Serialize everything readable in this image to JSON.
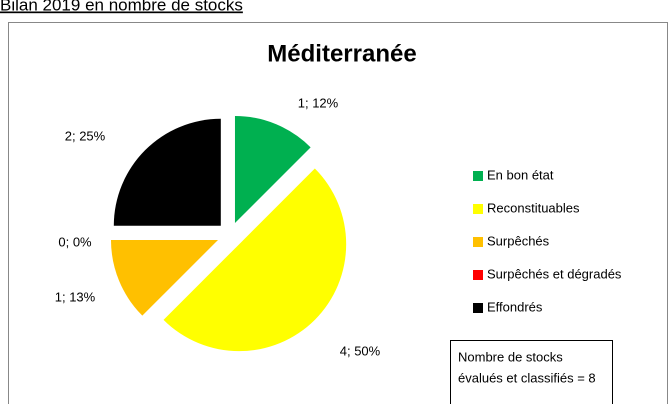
{
  "header": "Bilan 2019 en nombre de stocks",
  "chart_data": {
    "type": "pie",
    "title": "Méditerranée",
    "categories": [
      "En bon état",
      "Reconstituables",
      "Surpêchés",
      "Surpêchés et dégradés",
      "Effondrés"
    ],
    "values": [
      1,
      4,
      1,
      0,
      2
    ],
    "value_labels": [
      "1; 12%",
      "4; 50%",
      "1; 13%",
      "0; 0%",
      "2; 25%"
    ],
    "colors": [
      "#00b050",
      "#ffff00",
      "#ffc000",
      "#ff0000",
      "#000000"
    ],
    "legend": "right",
    "annotation": [
      "Nombre de stocks",
      "évalués et classifiés = 8"
    ]
  }
}
